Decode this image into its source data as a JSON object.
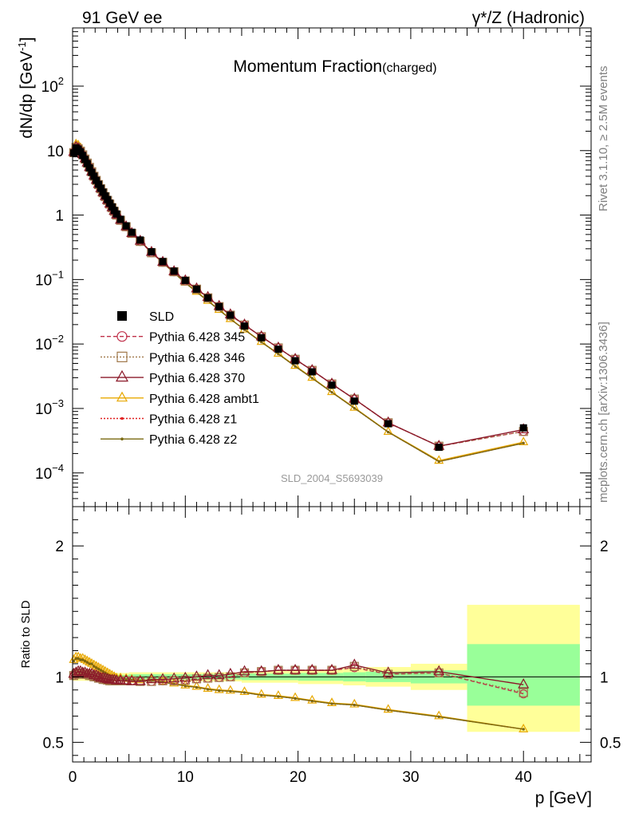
{
  "header": {
    "left": "91 GeV ee",
    "right": "γ*/Z (Hadronic)"
  },
  "side_texts": {
    "rivet": "Rivet 3.1.10, ≥ 2.5M events",
    "mcplots": "mcplots.cern.ch [arXiv:1306.3436]"
  },
  "colors": {
    "s345": "#c0304a",
    "s346": "#a0784a",
    "s370": "#8b1a2a",
    "ambt1": "#e8a800",
    "z1": "#e02020",
    "z2": "#7a6a10",
    "band_green": "#99ff99",
    "band_yellow": "#ffff99"
  },
  "chart_data": [
    {
      "type": "line",
      "title": "Momentum Fraction",
      "title_suffix": "(charged)",
      "ylabel": "dN/dp [GeV",
      "ylabel_sup": "-1",
      "ylabel_close": "]",
      "yscale": "log",
      "ylim": [
        3e-05,
        800
      ],
      "xlim": [
        0,
        46
      ],
      "y_tick_labels": [
        {
          "v": 0.0001,
          "base": "10",
          "exp": "−4"
        },
        {
          "v": 0.001,
          "base": "10",
          "exp": "−3"
        },
        {
          "v": 0.01,
          "base": "10",
          "exp": "−2"
        },
        {
          "v": 0.1,
          "base": "10",
          "exp": "−1"
        },
        {
          "v": 1,
          "base": "1",
          "exp": ""
        },
        {
          "v": 10,
          "base": "10",
          "exp": ""
        },
        {
          "v": 100,
          "base": "10",
          "exp": "2"
        }
      ],
      "watermark": "SLD_2004_S5693039",
      "legend_position": "left-middle",
      "legend": [
        {
          "key": "data",
          "label": "SLD"
        },
        {
          "key": "s345",
          "label": "Pythia 6.428 345"
        },
        {
          "key": "s346",
          "label": "Pythia 6.428 346"
        },
        {
          "key": "s370",
          "label": "Pythia 6.428 370"
        },
        {
          "key": "ambt1",
          "label": "Pythia 6.428 ambt1"
        },
        {
          "key": "z1",
          "label": "Pythia 6.428 z1"
        },
        {
          "key": "z2",
          "label": "Pythia 6.428 z2"
        }
      ],
      "x": [
        0.1,
        0.3,
        0.5,
        0.7,
        0.9,
        1.1,
        1.3,
        1.5,
        1.7,
        1.9,
        2.1,
        2.3,
        2.5,
        2.7,
        2.9,
        3.1,
        3.3,
        3.5,
        3.7,
        3.9,
        4.25,
        4.75,
        5.25,
        6.0,
        7.0,
        8.0,
        9.0,
        10.0,
        11.0,
        12.0,
        13.0,
        14.0,
        15.25,
        16.75,
        18.25,
        19.75,
        21.25,
        23.0,
        25.0,
        28.0,
        32.5,
        40.0
      ],
      "series": [
        {
          "key": "data",
          "values": [
            9.2,
            11.0,
            10.5,
            9.6,
            8.4,
            7.3,
            6.3,
            5.4,
            4.6,
            4.0,
            3.45,
            3.0,
            2.6,
            2.27,
            1.98,
            1.74,
            1.53,
            1.34,
            1.18,
            1.04,
            0.86,
            0.68,
            0.54,
            0.41,
            0.27,
            0.19,
            0.135,
            0.097,
            0.071,
            0.052,
            0.038,
            0.028,
            0.019,
            0.0125,
            0.0083,
            0.0055,
            0.0037,
            0.0023,
            0.0013,
            0.00058,
            0.00025,
            0.0005
          ]
        },
        {
          "key": "s345",
          "values": [
            9.3,
            11.2,
            10.7,
            9.8,
            8.6,
            7.4,
            6.4,
            5.5,
            4.7,
            4.0,
            3.45,
            2.97,
            2.56,
            2.22,
            1.93,
            1.69,
            1.48,
            1.3,
            1.14,
            1.0,
            0.83,
            0.66,
            0.52,
            0.39,
            0.26,
            0.185,
            0.132,
            0.095,
            0.071,
            0.052,
            0.038,
            0.028,
            0.0197,
            0.013,
            0.0087,
            0.0058,
            0.0039,
            0.0024,
            0.0014,
            0.0006,
            0.00026,
            0.00044
          ]
        },
        {
          "key": "s346",
          "values": [
            9.3,
            11.2,
            10.7,
            9.8,
            8.6,
            7.4,
            6.4,
            5.5,
            4.7,
            4.0,
            3.45,
            2.97,
            2.56,
            2.22,
            1.93,
            1.69,
            1.48,
            1.3,
            1.14,
            1.0,
            0.83,
            0.66,
            0.52,
            0.39,
            0.26,
            0.185,
            0.132,
            0.095,
            0.071,
            0.052,
            0.038,
            0.028,
            0.0197,
            0.013,
            0.0087,
            0.0058,
            0.0039,
            0.0024,
            0.0014,
            0.0006,
            0.00026,
            0.00044
          ]
        },
        {
          "key": "s370",
          "values": [
            9.4,
            11.3,
            10.8,
            9.9,
            8.7,
            7.5,
            6.45,
            5.5,
            4.7,
            4.05,
            3.48,
            3.0,
            2.58,
            2.24,
            1.95,
            1.7,
            1.49,
            1.31,
            1.15,
            1.01,
            0.835,
            0.66,
            0.52,
            0.395,
            0.265,
            0.186,
            0.133,
            0.096,
            0.072,
            0.053,
            0.0385,
            0.0285,
            0.0198,
            0.013,
            0.0087,
            0.0058,
            0.0039,
            0.0024,
            0.0014,
            0.0006,
            0.00026,
            0.00047
          ]
        },
        {
          "key": "ambt1",
          "values": [
            10.4,
            12.6,
            12.1,
            11.0,
            9.6,
            8.3,
            7.1,
            6.0,
            5.1,
            4.36,
            3.73,
            3.2,
            2.75,
            2.37,
            2.05,
            1.78,
            1.55,
            1.35,
            1.18,
            1.03,
            0.85,
            0.67,
            0.53,
            0.4,
            0.265,
            0.183,
            0.128,
            0.09,
            0.065,
            0.047,
            0.034,
            0.0245,
            0.0168,
            0.0108,
            0.0071,
            0.0046,
            0.003,
            0.0018,
            0.00103,
            0.000435,
            0.000155,
            0.0003
          ]
        },
        {
          "key": "z1",
          "values": [
            10.3,
            12.5,
            12.0,
            10.9,
            9.5,
            8.2,
            7.0,
            5.95,
            5.05,
            4.32,
            3.7,
            3.18,
            2.73,
            2.35,
            2.03,
            1.76,
            1.54,
            1.34,
            1.17,
            1.02,
            0.84,
            0.665,
            0.525,
            0.397,
            0.263,
            0.182,
            0.127,
            0.089,
            0.064,
            0.0465,
            0.0337,
            0.0243,
            0.0167,
            0.0107,
            0.007,
            0.0045,
            0.00295,
            0.00178,
            0.00101,
            0.00043,
            0.00015,
            0.00029
          ]
        },
        {
          "key": "z2",
          "values": [
            10.3,
            12.5,
            12.0,
            10.9,
            9.5,
            8.2,
            7.0,
            5.95,
            5.05,
            4.32,
            3.7,
            3.18,
            2.73,
            2.35,
            2.03,
            1.76,
            1.54,
            1.34,
            1.17,
            1.02,
            0.84,
            0.665,
            0.525,
            0.397,
            0.263,
            0.182,
            0.127,
            0.089,
            0.064,
            0.0465,
            0.0337,
            0.0243,
            0.0167,
            0.0107,
            0.007,
            0.0045,
            0.00295,
            0.00178,
            0.00101,
            0.00043,
            0.00015,
            0.00029
          ]
        }
      ]
    },
    {
      "type": "line",
      "ylabel": "Ratio to SLD",
      "xlabel": "p [GeV]",
      "xlim": [
        0,
        46
      ],
      "ylim": [
        0.35,
        2.3
      ],
      "x_ticks": [
        0,
        10,
        20,
        30,
        40
      ],
      "y_ticks": [
        0.5,
        1,
        2
      ],
      "bands": [
        {
          "x0": 0.0,
          "x1": 5.0,
          "green": [
            0.985,
            1.015
          ],
          "yellow": [
            0.97,
            1.03
          ]
        },
        {
          "x0": 5.0,
          "x1": 15.0,
          "green": [
            0.98,
            1.02
          ],
          "yellow": [
            0.965,
            1.035
          ]
        },
        {
          "x0": 15.0,
          "x1": 20.0,
          "green": [
            0.975,
            1.025
          ],
          "yellow": [
            0.955,
            1.045
          ]
        },
        {
          "x0": 20.0,
          "x1": 24.0,
          "green": [
            0.97,
            1.03
          ],
          "yellow": [
            0.945,
            1.055
          ]
        },
        {
          "x0": 24.0,
          "x1": 26.0,
          "green": [
            0.965,
            1.035
          ],
          "yellow": [
            0.935,
            1.065
          ]
        },
        {
          "x0": 26.0,
          "x1": 30.0,
          "green": [
            0.96,
            1.04
          ],
          "yellow": [
            0.925,
            1.075
          ]
        },
        {
          "x0": 30.0,
          "x1": 35.0,
          "green": [
            0.95,
            1.05
          ],
          "yellow": [
            0.9,
            1.1
          ]
        },
        {
          "x0": 35.0,
          "x1": 45.0,
          "green": [
            0.78,
            1.25
          ],
          "yellow": [
            0.58,
            1.55
          ]
        }
      ],
      "x": [
        0.1,
        0.3,
        0.5,
        0.7,
        0.9,
        1.1,
        1.3,
        1.5,
        1.7,
        1.9,
        2.1,
        2.3,
        2.5,
        2.7,
        2.9,
        3.1,
        3.3,
        3.5,
        3.7,
        3.9,
        4.25,
        4.75,
        5.25,
        6.0,
        7.0,
        8.0,
        9.0,
        10.0,
        11.0,
        12.0,
        13.0,
        14.0,
        15.25,
        16.75,
        18.25,
        19.75,
        21.25,
        23.0,
        25.0,
        28.0,
        32.5,
        40.0
      ],
      "series": [
        {
          "key": "s345",
          "values": [
            1.01,
            1.02,
            1.03,
            1.03,
            1.02,
            1.02,
            1.02,
            1.01,
            1.01,
            1.0,
            1.0,
            0.99,
            0.99,
            0.98,
            0.98,
            0.975,
            0.97,
            0.97,
            0.97,
            0.97,
            0.97,
            0.97,
            0.97,
            0.965,
            0.965,
            0.97,
            0.97,
            0.975,
            0.985,
            0.99,
            0.995,
            1.0,
            1.03,
            1.04,
            1.05,
            1.05,
            1.05,
            1.05,
            1.07,
            1.02,
            1.03,
            0.87
          ]
        },
        {
          "key": "s346",
          "values": [
            1.01,
            1.02,
            1.03,
            1.03,
            1.02,
            1.02,
            1.02,
            1.01,
            1.01,
            1.0,
            1.0,
            0.99,
            0.99,
            0.98,
            0.98,
            0.975,
            0.97,
            0.97,
            0.97,
            0.97,
            0.97,
            0.97,
            0.97,
            0.965,
            0.965,
            0.97,
            0.97,
            0.975,
            0.985,
            0.99,
            0.995,
            1.0,
            1.03,
            1.04,
            1.05,
            1.05,
            1.05,
            1.05,
            1.08,
            1.02,
            1.03,
            0.88
          ]
        },
        {
          "key": "s370",
          "values": [
            1.02,
            1.03,
            1.04,
            1.04,
            1.03,
            1.03,
            1.02,
            1.02,
            1.02,
            1.01,
            1.01,
            1.0,
            0.99,
            0.99,
            0.985,
            0.98,
            0.975,
            0.975,
            0.975,
            0.97,
            0.97,
            0.97,
            0.965,
            0.965,
            0.98,
            0.98,
            0.985,
            0.99,
            1.0,
            1.01,
            1.01,
            1.02,
            1.04,
            1.04,
            1.05,
            1.05,
            1.05,
            1.05,
            1.09,
            1.03,
            1.04,
            0.94
          ]
        },
        {
          "key": "ambt1",
          "values": [
            1.13,
            1.15,
            1.15,
            1.14,
            1.14,
            1.13,
            1.12,
            1.11,
            1.1,
            1.09,
            1.08,
            1.07,
            1.06,
            1.05,
            1.04,
            1.03,
            1.02,
            1.01,
            1.0,
            0.99,
            0.99,
            0.985,
            0.98,
            0.975,
            0.975,
            0.965,
            0.95,
            0.935,
            0.925,
            0.91,
            0.9,
            0.895,
            0.885,
            0.865,
            0.855,
            0.84,
            0.82,
            0.8,
            0.79,
            0.75,
            0.7,
            0.6
          ]
        },
        {
          "key": "z1",
          "values": [
            1.12,
            1.14,
            1.14,
            1.13,
            1.13,
            1.12,
            1.11,
            1.1,
            1.1,
            1.08,
            1.07,
            1.06,
            1.05,
            1.04,
            1.03,
            1.02,
            1.01,
            1.0,
            0.99,
            0.985,
            0.985,
            0.98,
            0.975,
            0.97,
            0.97,
            0.96,
            0.945,
            0.93,
            0.92,
            0.905,
            0.895,
            0.89,
            0.88,
            0.86,
            0.85,
            0.835,
            0.815,
            0.795,
            0.785,
            0.745,
            0.695,
            0.6
          ]
        },
        {
          "key": "z2",
          "values": [
            1.12,
            1.14,
            1.14,
            1.13,
            1.13,
            1.12,
            1.11,
            1.1,
            1.1,
            1.08,
            1.07,
            1.06,
            1.05,
            1.04,
            1.03,
            1.02,
            1.01,
            1.0,
            0.99,
            0.985,
            0.985,
            0.98,
            0.975,
            0.97,
            0.97,
            0.96,
            0.945,
            0.93,
            0.92,
            0.905,
            0.895,
            0.89,
            0.88,
            0.86,
            0.85,
            0.835,
            0.815,
            0.795,
            0.785,
            0.745,
            0.695,
            0.6
          ]
        }
      ]
    }
  ]
}
